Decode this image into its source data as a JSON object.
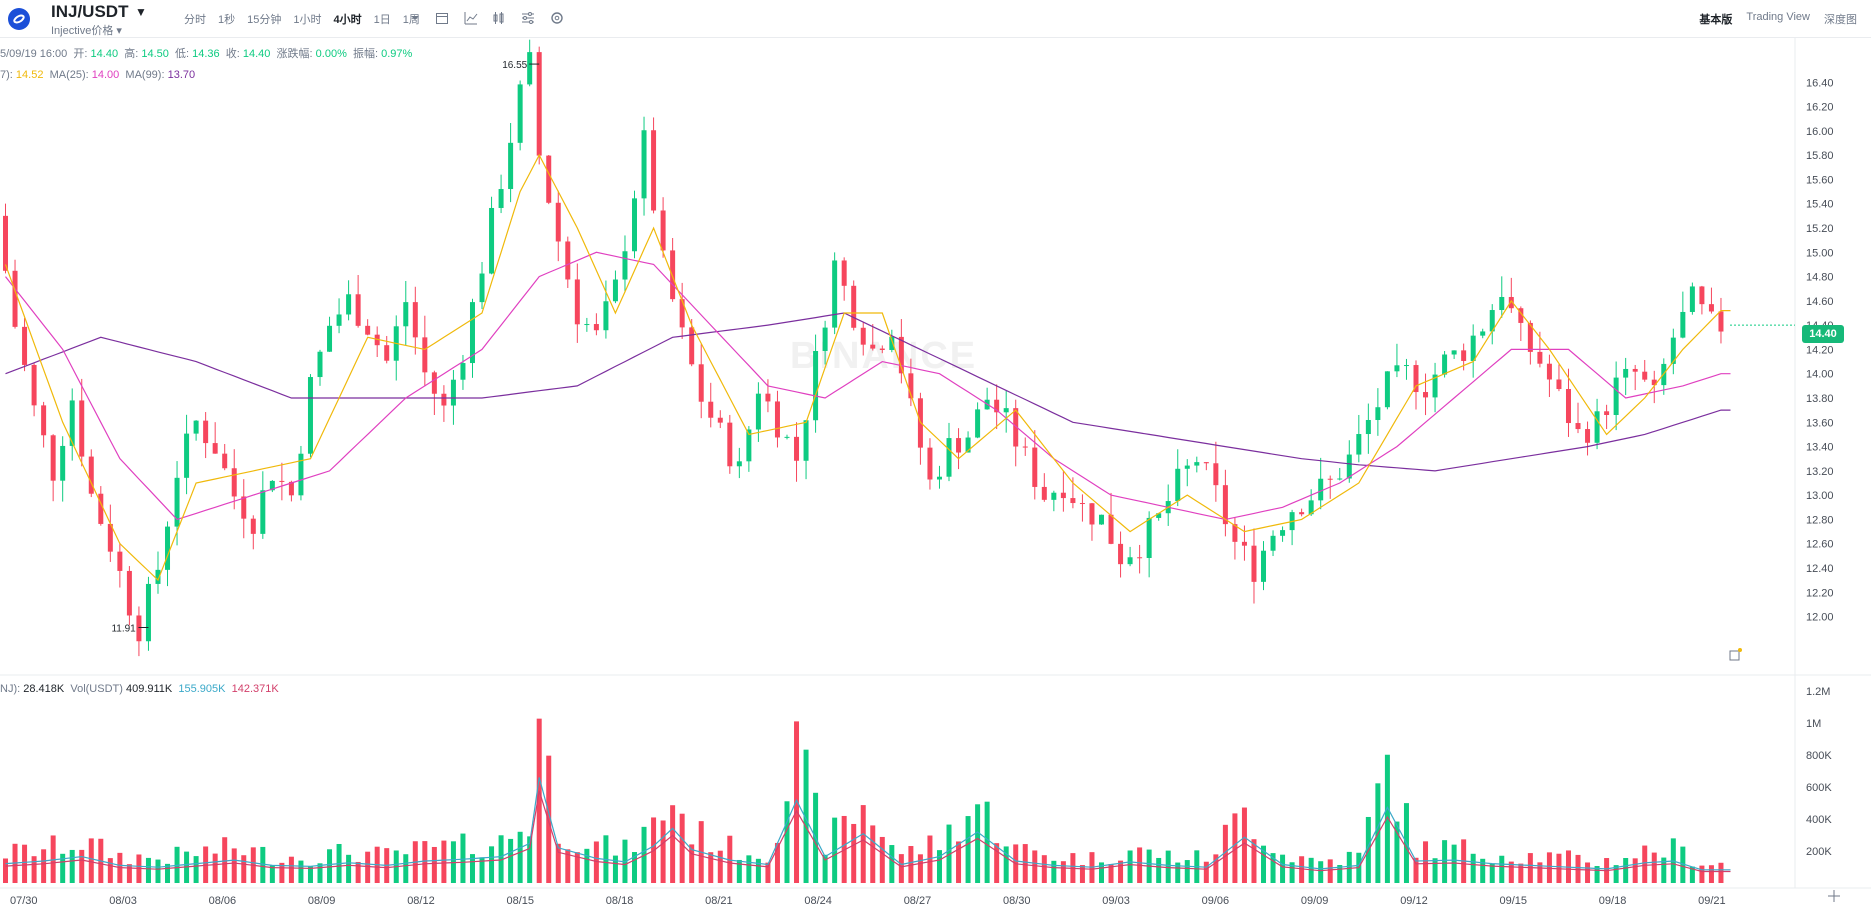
{
  "header": {
    "pair": "INJ/USDT",
    "subtitle": "Injective价格 ▾",
    "intervals": [
      "分时",
      "1秒",
      "15分钟",
      "1小时",
      "4小时",
      "1日",
      "1周"
    ],
    "active_interval": "4小时",
    "views": [
      "基本版",
      "Trading View",
      "深度图"
    ],
    "active_view": "基本版"
  },
  "ohlc": {
    "date": "5/09/19 16:00",
    "open_label": "开:",
    "open": "14.40",
    "high_label": "高:",
    "high": "14.50",
    "low_label": "低:",
    "low": "14.36",
    "close_label": "收:",
    "close": "14.40",
    "change_label": "涨跌幅:",
    "change": "0.00%",
    "amp_label": "振幅:",
    "amp": "0.97%"
  },
  "ma": {
    "ma7_label": "7):",
    "ma7": "14.52",
    "ma25_label": "MA(25):",
    "ma25": "14.00",
    "ma99_label": "MA(99):",
    "ma99": "13.70"
  },
  "volume": {
    "vol_inj_label": "NJ):",
    "vol_inj": "28.418K",
    "vol_usdt_label": "Vol(USDT)",
    "vol_usdt": "409.911K",
    "ma10": "155.905K",
    "ma30": "142.371K"
  },
  "price_tag": "14.40",
  "watermark": "BINANCE",
  "colors": {
    "up": "#0ecb81",
    "down": "#f6465d",
    "ma7": "#f0b90b",
    "ma25": "#e040c0",
    "ma99": "#7b2f9e"
  },
  "chart_data": {
    "type": "candlestick",
    "price_axis": {
      "min": 11.91,
      "max": 16.55,
      "ticks": [
        "16.40",
        "16.20",
        "16.00",
        "15.80",
        "15.60",
        "15.40",
        "15.20",
        "15.00",
        "14.80",
        "14.60",
        "14.40",
        "14.20",
        "14.00",
        "13.80",
        "13.60",
        "13.40",
        "13.20",
        "13.00",
        "12.80",
        "12.60",
        "12.40",
        "12.20",
        "12.00"
      ]
    },
    "volume_axis": {
      "ticks": [
        "1.2M",
        "1M",
        "800K",
        "600K",
        "400K",
        "200K"
      ]
    },
    "x_ticks": [
      "07/30",
      "08/03",
      "08/06",
      "08/09",
      "08/12",
      "08/15",
      "08/18",
      "08/21",
      "08/24",
      "08/27",
      "08/30",
      "09/03",
      "09/06",
      "09/09",
      "09/12",
      "09/15",
      "09/18",
      "09/21"
    ],
    "high_label": "16.55",
    "low_label": "11.91",
    "price_path": [
      [
        0,
        15.3
      ],
      [
        2,
        14.4
      ],
      [
        4,
        13.7
      ],
      [
        6,
        13.2
      ],
      [
        8,
        13.8
      ],
      [
        10,
        13.0
      ],
      [
        12,
        12.6
      ],
      [
        14,
        12.1
      ],
      [
        15,
        11.91
      ],
      [
        17,
        12.4
      ],
      [
        19,
        13.2
      ],
      [
        21,
        13.6
      ],
      [
        23,
        13.4
      ],
      [
        25,
        13.0
      ],
      [
        27,
        12.8
      ],
      [
        29,
        13.2
      ],
      [
        31,
        13.0
      ],
      [
        33,
        13.9
      ],
      [
        35,
        14.4
      ],
      [
        37,
        14.6
      ],
      [
        39,
        14.4
      ],
      [
        41,
        14.1
      ],
      [
        43,
        14.6
      ],
      [
        45,
        14.0
      ],
      [
        47,
        13.7
      ],
      [
        49,
        14.2
      ],
      [
        51,
        14.9
      ],
      [
        53,
        15.6
      ],
      [
        55,
        16.3
      ],
      [
        56,
        16.55
      ],
      [
        57,
        15.8
      ],
      [
        59,
        15.1
      ],
      [
        61,
        14.5
      ],
      [
        63,
        14.3
      ],
      [
        65,
        14.7
      ],
      [
        67,
        15.5
      ],
      [
        68,
        15.9
      ],
      [
        70,
        14.9
      ],
      [
        72,
        14.3
      ],
      [
        74,
        13.8
      ],
      [
        76,
        13.5
      ],
      [
        78,
        13.2
      ],
      [
        80,
        13.9
      ],
      [
        82,
        13.6
      ],
      [
        84,
        13.3
      ],
      [
        86,
        14.1
      ],
      [
        88,
        14.9
      ],
      [
        90,
        14.5
      ],
      [
        92,
        14.2
      ],
      [
        94,
        14.4
      ],
      [
        96,
        13.7
      ],
      [
        98,
        13.1
      ],
      [
        100,
        13.4
      ],
      [
        102,
        13.5
      ],
      [
        104,
        13.8
      ],
      [
        106,
        13.6
      ],
      [
        108,
        13.3
      ],
      [
        110,
        13.0
      ],
      [
        112,
        13.1
      ],
      [
        114,
        12.9
      ],
      [
        116,
        12.8
      ],
      [
        118,
        12.5
      ],
      [
        120,
        12.6
      ],
      [
        122,
        12.8
      ],
      [
        124,
        13.1
      ],
      [
        126,
        13.3
      ],
      [
        128,
        13.0
      ],
      [
        130,
        12.6
      ],
      [
        132,
        12.4
      ],
      [
        134,
        12.7
      ],
      [
        136,
        12.9
      ],
      [
        138,
        13.0
      ],
      [
        140,
        13.1
      ],
      [
        142,
        13.3
      ],
      [
        144,
        13.6
      ],
      [
        146,
        13.9
      ],
      [
        148,
        14.0
      ],
      [
        150,
        13.9
      ],
      [
        152,
        14.1
      ],
      [
        154,
        14.2
      ],
      [
        156,
        14.4
      ],
      [
        158,
        14.7
      ],
      [
        160,
        14.3
      ],
      [
        162,
        14.1
      ],
      [
        164,
        13.8
      ],
      [
        166,
        13.5
      ],
      [
        168,
        13.6
      ],
      [
        170,
        13.9
      ],
      [
        172,
        14.0
      ],
      [
        174,
        13.8
      ],
      [
        176,
        14.3
      ],
      [
        178,
        14.6
      ],
      [
        180,
        14.4
      ]
    ],
    "volume_path": [
      [
        0,
        220
      ],
      [
        4,
        250
      ],
      [
        8,
        300
      ],
      [
        12,
        200
      ],
      [
        16,
        180
      ],
      [
        20,
        220
      ],
      [
        24,
        260
      ],
      [
        28,
        200
      ],
      [
        32,
        190
      ],
      [
        36,
        230
      ],
      [
        40,
        200
      ],
      [
        44,
        250
      ],
      [
        48,
        270
      ],
      [
        52,
        300
      ],
      [
        55,
        450
      ],
      [
        56,
        1200
      ],
      [
        58,
        400
      ],
      [
        62,
        280
      ],
      [
        65,
        240
      ],
      [
        68,
        420
      ],
      [
        70,
        620
      ],
      [
        72,
        380
      ],
      [
        76,
        260
      ],
      [
        80,
        210
      ],
      [
        83,
        940
      ],
      [
        86,
        300
      ],
      [
        90,
        560
      ],
      [
        94,
        210
      ],
      [
        98,
        300
      ],
      [
        102,
        580
      ],
      [
        106,
        250
      ],
      [
        110,
        200
      ],
      [
        114,
        180
      ],
      [
        118,
        240
      ],
      [
        122,
        200
      ],
      [
        126,
        180
      ],
      [
        130,
        520
      ],
      [
        134,
        210
      ],
      [
        138,
        160
      ],
      [
        142,
        200
      ],
      [
        145,
        860
      ],
      [
        148,
        250
      ],
      [
        152,
        260
      ],
      [
        156,
        220
      ],
      [
        160,
        200
      ],
      [
        164,
        180
      ],
      [
        168,
        160
      ],
      [
        172,
        230
      ],
      [
        175,
        250
      ],
      [
        178,
        150
      ]
    ],
    "ma7_path": [
      [
        0,
        14.9
      ],
      [
        6,
        13.6
      ],
      [
        12,
        12.6
      ],
      [
        16,
        12.3
      ],
      [
        20,
        13.1
      ],
      [
        26,
        13.2
      ],
      [
        32,
        13.3
      ],
      [
        38,
        14.3
      ],
      [
        44,
        14.2
      ],
      [
        50,
        14.5
      ],
      [
        54,
        15.5
      ],
      [
        56,
        15.8
      ],
      [
        60,
        15.2
      ],
      [
        64,
        14.5
      ],
      [
        68,
        15.2
      ],
      [
        72,
        14.4
      ],
      [
        78,
        13.5
      ],
      [
        84,
        13.6
      ],
      [
        88,
        14.5
      ],
      [
        92,
        14.5
      ],
      [
        96,
        13.6
      ],
      [
        100,
        13.3
      ],
      [
        106,
        13.7
      ],
      [
        112,
        13.1
      ],
      [
        118,
        12.7
      ],
      [
        124,
        13.0
      ],
      [
        130,
        12.7
      ],
      [
        136,
        12.8
      ],
      [
        142,
        13.1
      ],
      [
        148,
        13.9
      ],
      [
        154,
        14.1
      ],
      [
        158,
        14.6
      ],
      [
        162,
        14.2
      ],
      [
        168,
        13.5
      ],
      [
        172,
        13.8
      ],
      [
        176,
        14.2
      ],
      [
        180,
        14.52
      ]
    ],
    "ma25_path": [
      [
        0,
        14.8
      ],
      [
        6,
        14.2
      ],
      [
        12,
        13.3
      ],
      [
        18,
        12.8
      ],
      [
        26,
        13.0
      ],
      [
        34,
        13.2
      ],
      [
        42,
        13.8
      ],
      [
        50,
        14.2
      ],
      [
        56,
        14.8
      ],
      [
        62,
        15.0
      ],
      [
        68,
        14.9
      ],
      [
        74,
        14.4
      ],
      [
        80,
        13.9
      ],
      [
        86,
        13.8
      ],
      [
        92,
        14.1
      ],
      [
        98,
        14.0
      ],
      [
        104,
        13.7
      ],
      [
        110,
        13.3
      ],
      [
        116,
        13.0
      ],
      [
        122,
        12.9
      ],
      [
        128,
        12.8
      ],
      [
        134,
        12.9
      ],
      [
        140,
        13.1
      ],
      [
        146,
        13.4
      ],
      [
        152,
        13.8
      ],
      [
        158,
        14.2
      ],
      [
        164,
        14.2
      ],
      [
        170,
        13.8
      ],
      [
        176,
        13.9
      ],
      [
        180,
        14.0
      ]
    ],
    "ma99_path": [
      [
        0,
        14.0
      ],
      [
        10,
        14.3
      ],
      [
        20,
        14.1
      ],
      [
        30,
        13.8
      ],
      [
        40,
        13.8
      ],
      [
        50,
        13.8
      ],
      [
        60,
        13.9
      ],
      [
        70,
        14.3
      ],
      [
        80,
        14.4
      ],
      [
        88,
        14.5
      ],
      [
        96,
        14.2
      ],
      [
        104,
        13.9
      ],
      [
        112,
        13.6
      ],
      [
        120,
        13.5
      ],
      [
        128,
        13.4
      ],
      [
        136,
        13.3
      ],
      [
        142,
        13.25
      ],
      [
        150,
        13.2
      ],
      [
        158,
        13.3
      ],
      [
        166,
        13.4
      ],
      [
        172,
        13.5
      ],
      [
        180,
        13.7
      ]
    ]
  }
}
